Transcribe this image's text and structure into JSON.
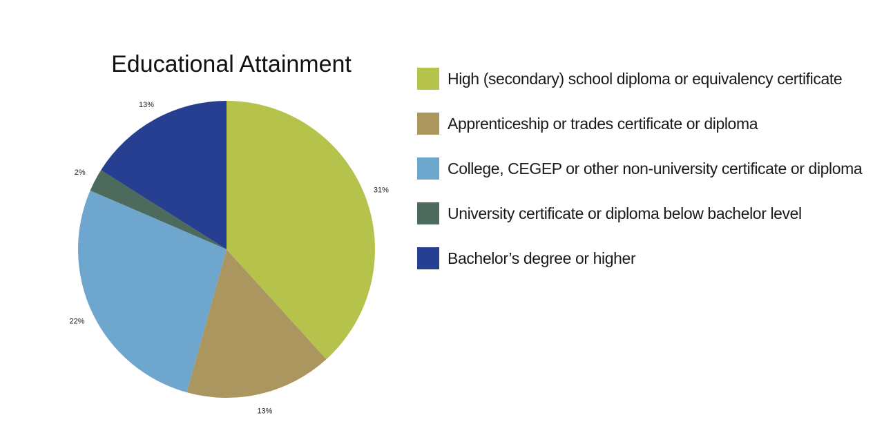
{
  "chart_data": {
    "type": "pie",
    "title": "Educational Attainment",
    "categories": [
      "High (secondary) school diploma or equivalency certificate",
      "Apprenticeship or trades certificate or diploma",
      "College, CEGEP or other non-university certificate or diploma",
      "University certificate or diploma below bachelor level",
      "Bachelor’s degree or higher"
    ],
    "values": [
      31,
      13,
      22,
      2,
      13
    ],
    "labels": [
      "31%",
      "13%",
      "22%",
      "2%",
      "13%"
    ],
    "colors": [
      "#b5c24c",
      "#ab965f",
      "#6fa6cd",
      "#4d6b5c",
      "#263f91"
    ],
    "legend_position": "right"
  }
}
